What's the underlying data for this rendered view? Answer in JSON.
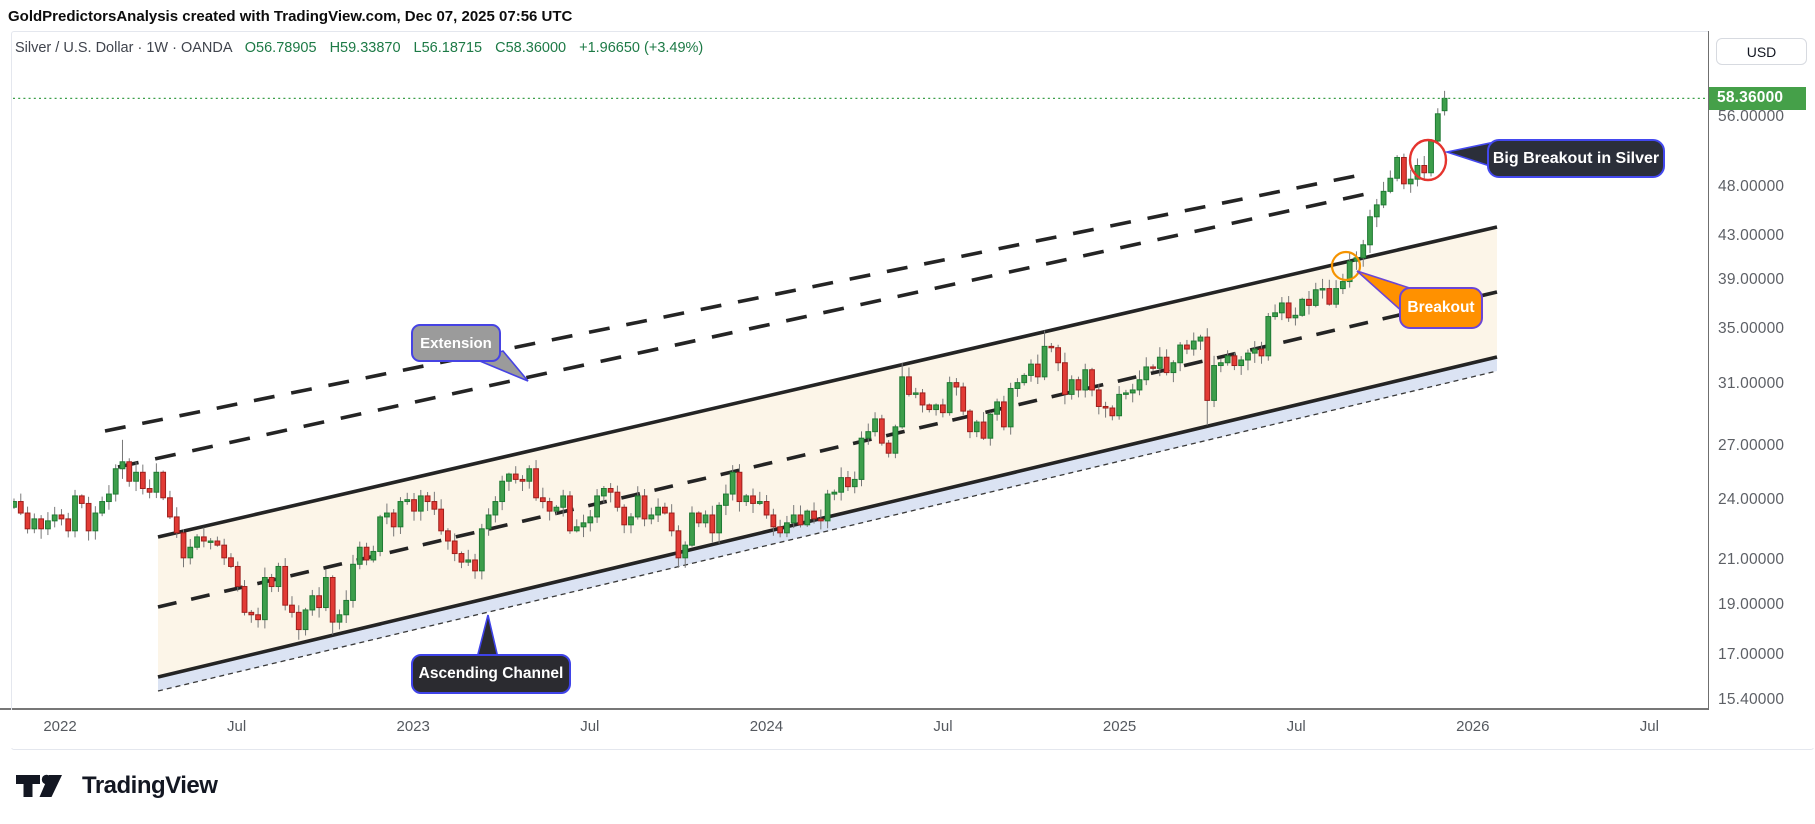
{
  "attribution": "GoldPredictorsAnalysis created with TradingView.com, Dec 07, 2025 07:56 UTC",
  "legend": {
    "symbol_line": "Silver / U.S. Dollar · 1W · OANDA",
    "values": [
      "O56.78905",
      "H59.33870",
      "L56.18715",
      "C58.36000",
      "+1.96650 (+3.49%)"
    ]
  },
  "price_scale": {
    "currency": "USD",
    "current_price_label": "58.36000",
    "ticks": [
      {
        "price": 56,
        "label": "56.00000"
      },
      {
        "price": 48,
        "label": "48.00000"
      },
      {
        "price": 43,
        "label": "43.00000"
      },
      {
        "price": 39,
        "label": "39.00000"
      },
      {
        "price": 35,
        "label": "35.00000"
      },
      {
        "price": 31,
        "label": "31.00000"
      },
      {
        "price": 27,
        "label": "27.00000"
      },
      {
        "price": 24,
        "label": "24.00000"
      },
      {
        "price": 21,
        "label": "21.00000"
      },
      {
        "price": 19,
        "label": "19.00000"
      },
      {
        "price": 17,
        "label": "17.00000"
      },
      {
        "price": 15.4,
        "label": "15.40000"
      }
    ]
  },
  "time_scale": {
    "ticks": [
      "2022",
      "Jul",
      "2023",
      "Jul",
      "2024",
      "Jul",
      "2025",
      "Jul",
      "2026",
      "Jul"
    ]
  },
  "annotations": {
    "extension": "Extension",
    "breakout": "Breakout",
    "big_breakout": "Big Breakout in Silver",
    "ascending_channel": "Ascending Channel"
  },
  "footer": {
    "brand": "TradingView"
  },
  "chart_data": {
    "type": "candlestick",
    "title": "Silver / U.S. Dollar",
    "timeframe": "1W",
    "exchange": "OANDA",
    "scale": "logarithmic",
    "ylim": [
      15.4,
      62
    ],
    "x_range": [
      "Nov 2021",
      "Dec 2025"
    ],
    "last": {
      "open": 56.78905,
      "high": 59.3387,
      "low": 56.18715,
      "close": 58.36,
      "change_abs": 1.9665,
      "change_pct": 3.49
    },
    "current_price": 58.36,
    "weekly_closes": [
      23.9,
      23.3,
      22.5,
      23.0,
      22.5,
      22.9,
      23.2,
      23.0,
      22.4,
      24.2,
      23.8,
      22.4,
      23.3,
      23.9,
      24.3,
      25.7,
      26.1,
      25.0,
      25.5,
      24.6,
      24.4,
      25.5,
      24.1,
      23.1,
      22.3,
      21.1,
      21.6,
      22.1,
      21.9,
      21.9,
      21.7,
      21.1,
      20.7,
      19.8,
      18.7,
      18.6,
      18.4,
      20.2,
      19.8,
      20.7,
      19.0,
      18.7,
      18.0,
      18.8,
      19.4,
      18.9,
      20.2,
      18.3,
      18.6,
      19.2,
      20.8,
      21.6,
      21.0,
      21.4,
      23.1,
      23.3,
      22.6,
      23.9,
      24.0,
      23.4,
      24.2,
      23.9,
      23.5,
      22.4,
      21.9,
      21.3,
      20.9,
      21.0,
      20.5,
      22.5,
      23.2,
      23.9,
      25.0,
      25.4,
      25.1,
      25.0,
      25.7,
      24.1,
      23.9,
      23.4,
      23.6,
      24.2,
      22.4,
      22.6,
      22.8,
      23.1,
      24.2,
      24.6,
      24.4,
      23.6,
      22.7,
      23.1,
      24.2,
      23.0,
      23.2,
      23.6,
      23.3,
      22.4,
      21.1,
      21.7,
      23.3,
      22.8,
      23.2,
      22.3,
      23.7,
      24.3,
      25.5,
      23.9,
      24.2,
      23.8,
      23.9,
      23.2,
      22.6,
      22.3,
      22.8,
      23.2,
      22.7,
      23.4,
      23.0,
      22.9,
      24.3,
      24.4,
      25.2,
      24.7,
      25.1,
      27.5,
      27.9,
      28.7,
      27.2,
      26.6,
      28.2,
      31.5,
      30.3,
      30.4,
      29.6,
      29.3,
      29.6,
      29.1,
      31.1,
      30.8,
      29.2,
      27.9,
      28.5,
      27.5,
      29.0,
      29.8,
      28.2,
      30.7,
      31.1,
      31.6,
      32.4,
      31.5,
      33.7,
      33.6,
      32.5,
      30.3,
      31.3,
      30.6,
      32.0,
      30.6,
      29.5,
      29.4,
      28.9,
      30.3,
      30.4,
      30.6,
      31.3,
      32.2,
      32.1,
      32.9,
      31.8,
      32.5,
      33.8,
      33.5,
      34.1,
      34.4,
      29.9,
      32.3,
      32.5,
      33.0,
      32.3,
      32.7,
      33.2,
      33.5,
      33.0,
      36.0,
      36.3,
      37.1,
      35.9,
      36.1,
      37.4,
      36.9,
      38.2,
      38.3,
      37.0,
      38.3,
      38.9,
      40.7,
      41.0,
      42.2,
      44.9,
      46.1,
      47.5,
      48.9,
      51.2,
      48.3,
      48.8,
      50.3,
      49.5,
      53.1,
      56.4,
      58.36
    ],
    "overrides": {
      "16": {
        "high": 27.4
      },
      "42": {
        "low": 17.6
      },
      "47": {
        "low": 17.8
      },
      "131": {
        "high": 32.5
      },
      "152": {
        "high": 34.9
      },
      "176": {
        "low": 28.3
      },
      "210": {
        "high": 57.1
      },
      "211": {
        "open": 56.79,
        "high": 59.34,
        "low": 56.19
      }
    },
    "drawings": {
      "ascending_channel": "parallel channel with solid upper/lower bounds, dashed midline, cream fill, blue support band below lower bound",
      "extension_channel": "two dashed parallel lines projected above the channel",
      "breakout_marker": "orange circle where price crosses upper channel bound",
      "big_breakout_marker": "red circle at vertical rally candles near 50"
    },
    "colors": {
      "up_candle": "#3d9e4b",
      "up_border": "#1f7a33",
      "down_candle": "#e23b35",
      "down_border": "#9e1f1c",
      "wick": "#787878",
      "channel_line": "#242424",
      "channel_fill": "#fcf5e8",
      "support_band": "#dbe3f3",
      "current_price_line": "#3da04b",
      "badge_green": "#45a049",
      "legend_green": "#1d7a46"
    }
  }
}
